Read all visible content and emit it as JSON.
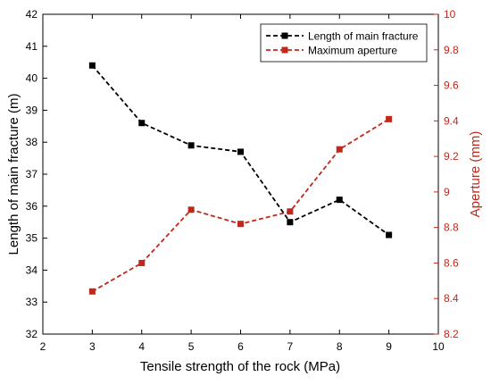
{
  "chart_data": {
    "type": "line",
    "xlabel": "Tensile strength of the rock (MPa)",
    "x_ticks": [
      2,
      3,
      4,
      5,
      6,
      7,
      8,
      9,
      10
    ],
    "xlim": [
      2,
      10
    ],
    "y_left": {
      "label": "Length of main fracture (m)",
      "lim": [
        32,
        42
      ],
      "ticks": [
        32,
        33,
        34,
        35,
        36,
        37,
        38,
        39,
        40,
        41,
        42
      ],
      "color": "#000000"
    },
    "y_right": {
      "label": "Aperture (mm)",
      "lim": [
        8.2,
        10
      ],
      "ticks": [
        "8.2",
        "8.4",
        "8.6",
        "8.8",
        "9",
        "9.2",
        "9.4",
        "9.6",
        "9.8",
        "10"
      ],
      "color": "#c0281b"
    },
    "series": [
      {
        "name": "Length of main fracture",
        "axis": "left",
        "color": "#000000",
        "line_style": "dashed",
        "marker": "square",
        "x": [
          3,
          4,
          5,
          6,
          7,
          8,
          9
        ],
        "y": [
          40.4,
          38.6,
          37.9,
          37.7,
          35.5,
          36.2,
          35.1
        ]
      },
      {
        "name": "Maximum aperture",
        "axis": "right",
        "color": "#c0281b",
        "line_style": "dashed",
        "marker": "square",
        "x": [
          3,
          4,
          5,
          6,
          7,
          8,
          9
        ],
        "y": [
          8.44,
          8.6,
          8.9,
          8.82,
          8.89,
          9.24,
          9.41
        ]
      }
    ],
    "legend": {
      "placement": "top-right"
    },
    "grid": false
  }
}
